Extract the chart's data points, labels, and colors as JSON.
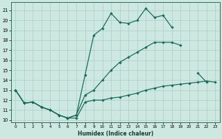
{
  "xlabel": "Humidex (Indice chaleur)",
  "bg_color": "#cce8e0",
  "grid_color": "#aaccC4",
  "line_color": "#1a6b5a",
  "xlim": [
    -0.5,
    23.5
  ],
  "ylim": [
    9.8,
    21.8
  ],
  "xticks": [
    0,
    1,
    2,
    3,
    4,
    5,
    6,
    7,
    8,
    9,
    10,
    11,
    12,
    13,
    14,
    15,
    16,
    17,
    18,
    19,
    20,
    21,
    22,
    23
  ],
  "yticks": [
    10,
    11,
    12,
    13,
    14,
    15,
    16,
    17,
    18,
    19,
    20,
    21
  ],
  "curve_upper_x": [
    0,
    1,
    2,
    3,
    4,
    5,
    6,
    7,
    8,
    9,
    10,
    11,
    12,
    13,
    14,
    15,
    16,
    17,
    18
  ],
  "curve_upper_y": [
    13.0,
    11.7,
    11.8,
    11.3,
    11.0,
    10.5,
    10.2,
    10.5,
    14.5,
    18.5,
    19.2,
    20.7,
    19.8,
    19.7,
    20.0,
    21.2,
    20.3,
    20.5,
    19.3
  ],
  "curve_mid_x": [
    0,
    1,
    2,
    3,
    4,
    5,
    6,
    7,
    8,
    9,
    10,
    11,
    12,
    13,
    14,
    15,
    16,
    17,
    18,
    19,
    20,
    21,
    22
  ],
  "curve_mid_y": [
    13.0,
    11.7,
    11.8,
    11.3,
    11.0,
    10.5,
    10.2,
    10.5,
    12.5,
    13.0,
    14.0,
    15.0,
    15.8,
    16.3,
    16.8,
    17.3,
    17.8,
    17.8,
    17.8,
    17.5,
    null,
    14.7,
    13.8
  ],
  "curve_bot_x": [
    0,
    1,
    2,
    3,
    4,
    5,
    6,
    7,
    8,
    9,
    10,
    11,
    12,
    13,
    14,
    15,
    16,
    17,
    18,
    19,
    20,
    21,
    22,
    23
  ],
  "curve_bot_y": [
    13.0,
    11.7,
    11.8,
    11.3,
    11.0,
    10.5,
    10.2,
    10.2,
    11.8,
    12.0,
    12.0,
    12.2,
    12.3,
    12.5,
    12.7,
    13.0,
    13.2,
    13.4,
    13.5,
    13.6,
    13.7,
    13.8,
    13.9,
    13.8
  ]
}
